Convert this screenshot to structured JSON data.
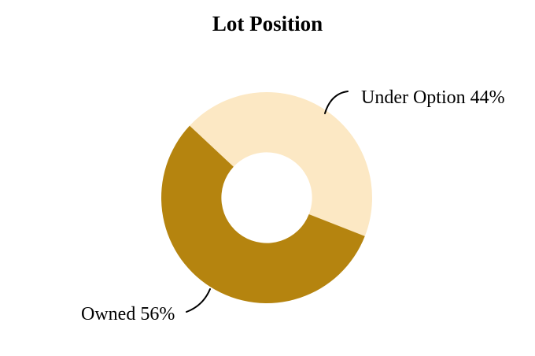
{
  "chart_data": {
    "type": "pie",
    "title": "Lot Position",
    "categories": [
      "Under Option",
      "Owned"
    ],
    "values": [
      44,
      56
    ],
    "unit": "%",
    "slice_labels": [
      "Under Option 44%",
      "Owned 56%"
    ],
    "colors": [
      "#FCE8C4",
      "#B5840F"
    ],
    "donut": true,
    "inner_radius_ratio": 0.43,
    "start_angle_deg": -47,
    "direction": "clockwise",
    "legend": "none",
    "background_color": "#FFFFFF",
    "text_color": "#000000",
    "leader_line_color": "#000000"
  }
}
